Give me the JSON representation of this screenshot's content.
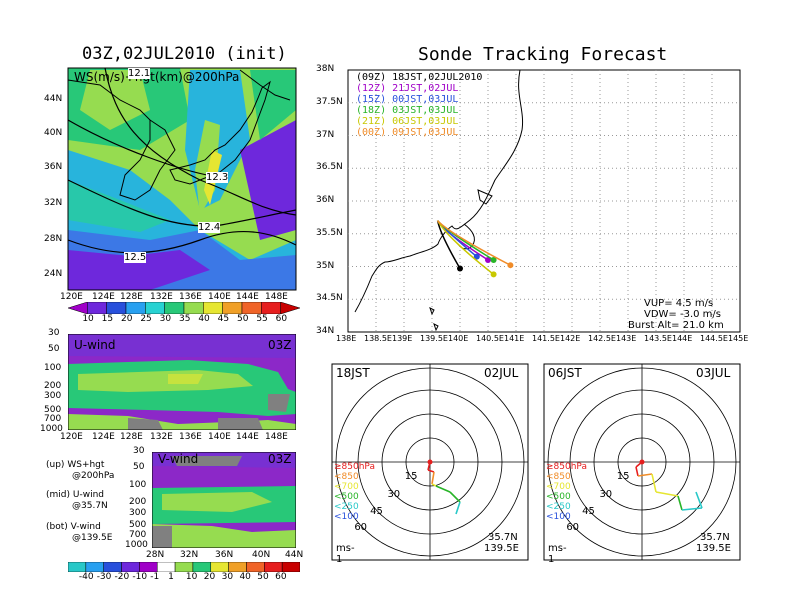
{
  "left_title": "03Z,02JUL2010 (init)",
  "right_title": "Sonde Tracking Forecast",
  "map_panel": {
    "label": "WS(m/s)+hgt(km)@200hPa",
    "lat_labels": [
      "44N",
      "40N",
      "36N",
      "32N",
      "28N",
      "24N"
    ],
    "lon_labels": [
      "120E",
      "124E",
      "128E",
      "132E",
      "136E",
      "140E",
      "144E",
      "148E"
    ],
    "contour_labels": [
      "12.1",
      "12.3",
      "12.4",
      "12.5"
    ],
    "colorbar_ticks": [
      "10",
      "15",
      "20",
      "25",
      "30",
      "35",
      "40",
      "45",
      "50",
      "55",
      "60"
    ],
    "colorbar_colors": [
      "#a000c8",
      "#6e28dc",
      "#2850dc",
      "#28a0f0",
      "#28d2d2",
      "#28c878",
      "#96dc50",
      "#e6e632",
      "#f0a028",
      "#f06428",
      "#e61e1e",
      "#c80000"
    ]
  },
  "uwind_panel": {
    "label": "U-wind",
    "time": "03Z",
    "pressure_labels": [
      "30",
      "50",
      "100",
      "200",
      "300",
      "500",
      "700",
      "1000"
    ],
    "lon_labels": [
      "120E",
      "124E",
      "128E",
      "132E",
      "136E",
      "140E",
      "144E",
      "148E"
    ]
  },
  "vwind_panel": {
    "label": "V-wind",
    "time": "03Z",
    "pressure_labels": [
      "30",
      "50",
      "100",
      "200",
      "300",
      "500",
      "700",
      "1000"
    ],
    "lat_labels": [
      "28N",
      "32N",
      "36N",
      "40N",
      "44N"
    ]
  },
  "panel_notes": [
    {
      "tag": "(up)",
      "line1": "WS+hgt",
      "line2": "@200hPa"
    },
    {
      "tag": "(mid)",
      "line1": "U-wind",
      "line2": "@35.7N"
    },
    {
      "tag": "(bot)",
      "line1": "V-wind",
      "line2": "@139.5E"
    }
  ],
  "bottom_colorbar": {
    "ticks": [
      "-40",
      "-30",
      "-20",
      "-10",
      "-1",
      "1",
      "10",
      "20",
      "30",
      "40",
      "50",
      "60"
    ],
    "colors": [
      "#28c8c8",
      "#28a0f0",
      "#2850dc",
      "#6e28dc",
      "#a000c8",
      "#ffffff",
      "#96dc50",
      "#28c878",
      "#e6e632",
      "#f0a028",
      "#f06428",
      "#e61e1e",
      "#c80000"
    ]
  },
  "track_map": {
    "lat_labels": [
      "38N",
      "37.5N",
      "37N",
      "36.5N",
      "36N",
      "35.5N",
      "35N",
      "34.5N",
      "34N"
    ],
    "lon_labels": [
      "138E",
      "138.5E",
      "139E",
      "139.5E",
      "140E",
      "140.5E",
      "141E",
      "141.5E",
      "142E",
      "142.5E",
      "143E",
      "143.5E",
      "144E",
      "144.5E",
      "145E"
    ],
    "legend": [
      {
        "z": "(09Z)",
        "time": "18JST,02JUL2010",
        "color": "#000000"
      },
      {
        "z": "(12Z)",
        "time": "21JST,02JUL",
        "color": "#a000c8"
      },
      {
        "z": "(15Z)",
        "time": "00JST,03JUL",
        "color": "#2850dc"
      },
      {
        "z": "(18Z)",
        "time": "03JST,03JUL",
        "color": "#28b428"
      },
      {
        "z": "(21Z)",
        "time": "06JST,03JUL",
        "color": "#c8c800"
      },
      {
        "z": "(00Z)",
        "time": "09JST,03JUL",
        "color": "#f08c28"
      }
    ],
    "params": {
      "vup": "VUP= 4.5 m/s",
      "vdw": "VDW= -3.0 m/s",
      "burst": "Burst Alt= 21.0 km"
    }
  },
  "hodographs": [
    {
      "left": "18JST",
      "right": "02JUL",
      "lat": "35.7N",
      "lon": "139.5E",
      "unit": "ms-1"
    },
    {
      "left": "06JST",
      "right": "03JUL",
      "lat": "35.7N",
      "lon": "139.5E",
      "unit": "ms-1"
    }
  ],
  "hodo_rings": [
    "15",
    "30",
    "45",
    "60"
  ],
  "hodo_levels": [
    {
      "label": "≥850hPa",
      "color": "#e61e1e"
    },
    {
      "label": "<850",
      "color": "#f08c28"
    },
    {
      "label": "<700",
      "color": "#e6e632"
    },
    {
      "label": "<500",
      "color": "#28b428"
    },
    {
      "label": "<250",
      "color": "#28c8c8"
    },
    {
      "label": "<100",
      "color": "#2850dc"
    }
  ],
  "chart_data": [
    {
      "type": "heatmap",
      "title": "03Z,02JUL2010 (init)",
      "variable": "WS(m/s)+hgt(km)@200hPa",
      "xlim": [
        "120E",
        "148E"
      ],
      "ylim": [
        "22N",
        "47N"
      ],
      "contours_km": [
        12.1,
        12.3,
        12.4,
        12.5
      ]
    },
    {
      "type": "heatmap",
      "variable": "U-wind",
      "xlim": [
        "120E",
        "148E"
      ],
      "ylim_hPa": [
        1000,
        30
      ]
    },
    {
      "type": "heatmap",
      "variable": "V-wind",
      "xlim": [
        "28N",
        "44N"
      ],
      "ylim_hPa": [
        1000,
        30
      ]
    },
    {
      "type": "line",
      "title": "Sonde Tracking Forecast",
      "xlim": [
        138.0,
        145.0
      ],
      "ylim": [
        34.0,
        38.0
      ],
      "series": [
        {
          "name": "(09Z) 18JST,02JUL2010",
          "end": [
            140.0,
            34.97
          ]
        },
        {
          "name": "(12Z) 21JST,02JUL",
          "end": [
            140.5,
            35.1
          ]
        },
        {
          "name": "(15Z) 00JST,03JUL",
          "end": [
            140.3,
            35.15
          ]
        },
        {
          "name": "(18Z) 03JST,03JUL",
          "end": [
            140.6,
            35.1
          ]
        },
        {
          "name": "(21Z) 06JST,03JUL",
          "end": [
            140.6,
            34.88
          ]
        },
        {
          "name": "(00Z) 09JST,03JUL",
          "end": [
            140.9,
            35.02
          ]
        }
      ]
    }
  ]
}
